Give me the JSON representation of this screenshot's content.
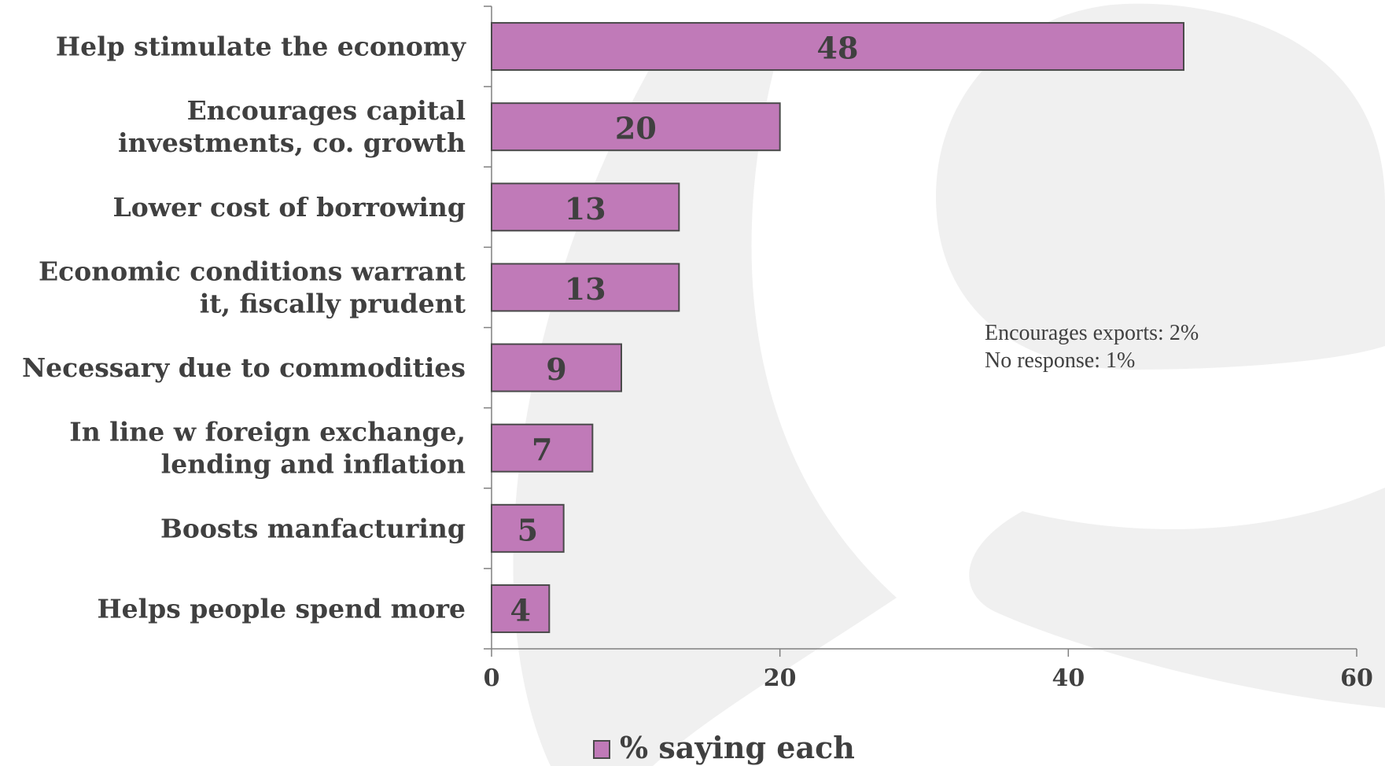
{
  "chart_data": {
    "type": "bar",
    "orientation": "horizontal",
    "categories": [
      [
        "Help stimulate the economy"
      ],
      [
        "Encourages capital",
        "investments, co. growth"
      ],
      [
        "Lower cost of borrowing"
      ],
      [
        "Economic conditions warrant",
        "it, fiscally prudent"
      ],
      [
        "Necessary due to commodities"
      ],
      [
        "In line w foreign exchange,",
        "lending and inflation"
      ],
      [
        "Boosts manfacturing"
      ],
      [
        "Helps people spend more"
      ]
    ],
    "series": [
      {
        "name": "% saying each",
        "values": [
          48,
          20,
          13,
          13,
          9,
          7,
          5,
          4
        ],
        "color": "#c07ab8"
      }
    ],
    "xlim": [
      0,
      60
    ],
    "ticks": [
      0,
      20,
      40,
      60
    ],
    "grid": false,
    "legend_position": "bottom",
    "annotations": [
      "Encourages exports: 2%",
      "No response: 1%"
    ],
    "colors": {
      "bar_fill": "#c07ab8",
      "bar_stroke": "#4a4a4a",
      "text": "#404040",
      "axis": "#808080",
      "watermark": "#f0f0f0"
    }
  }
}
